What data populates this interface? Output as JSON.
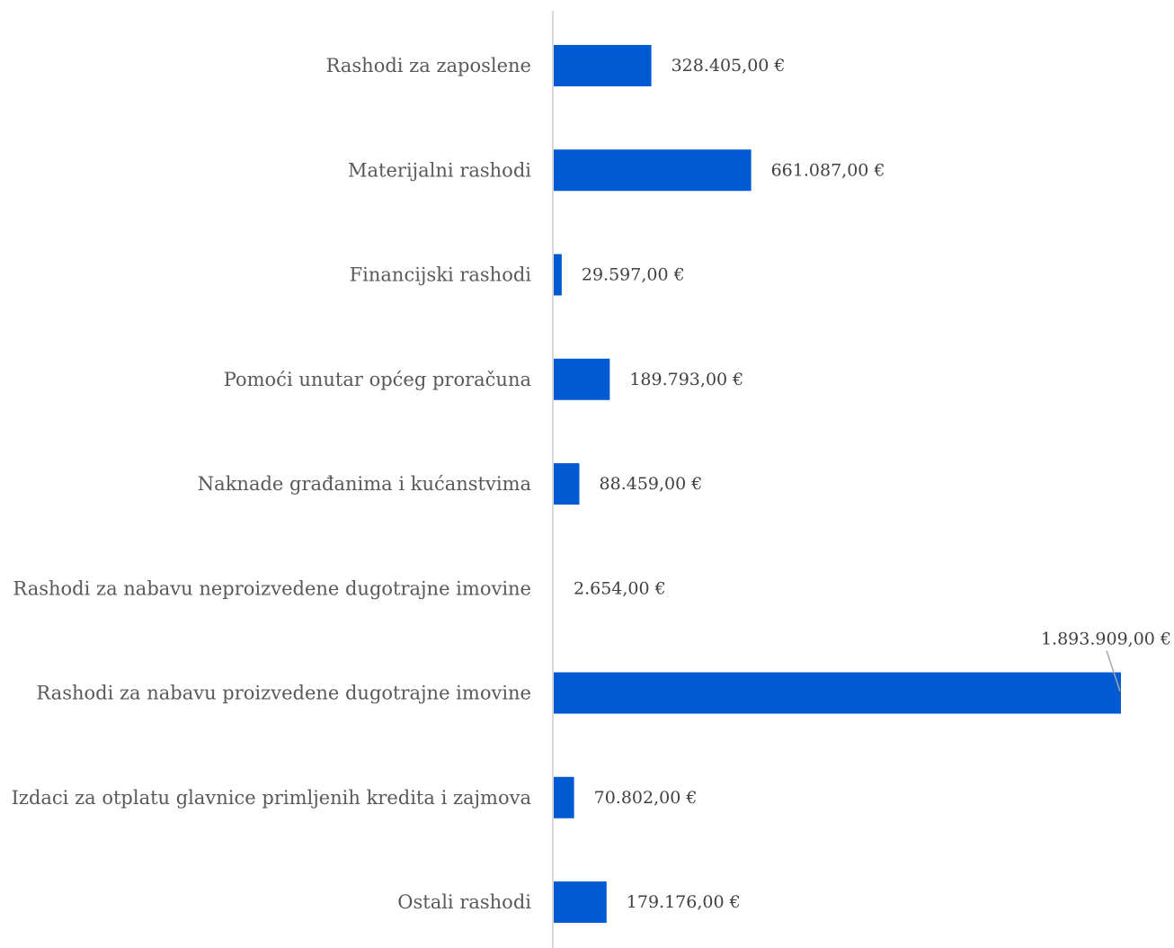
{
  "chart_data": {
    "type": "bar",
    "orientation": "horizontal",
    "title": "",
    "xlabel": "",
    "ylabel": "",
    "categories": [
      "Rashodi za zaposlene",
      "Materijalni rashodi",
      "Financijski rashodi",
      "Pomoći unutar općeg proračuna",
      "Naknade građanima i kućanstvima",
      "Rashodi za nabavu neproizvedene dugotrajne imovine",
      "Rashodi za nabavu proizvedene dugotrajne imovine",
      "Izdaci za otplatu glavnice primljenih kredita i zajmova",
      "Ostali rashodi"
    ],
    "values": [
      328405,
      661087,
      29597,
      189793,
      88459,
      2654,
      1893909,
      70802,
      179176
    ],
    "value_labels": [
      "328.405,00 €",
      "661.087,00 €",
      "29.597,00 €",
      "189.793,00 €",
      "88.459,00 €",
      "2.654,00 €",
      "1.893.909,00 €",
      "70.802,00 €",
      "179.176,00 €"
    ],
    "xlim": [
      0,
      1893909
    ],
    "grid": false,
    "legend": "none",
    "colors": {
      "bar": "#005bd3",
      "axis": "#d9d9d9",
      "category_text": "#595959",
      "value_text": "#404040",
      "leader_line": "#a6a6a6"
    }
  }
}
